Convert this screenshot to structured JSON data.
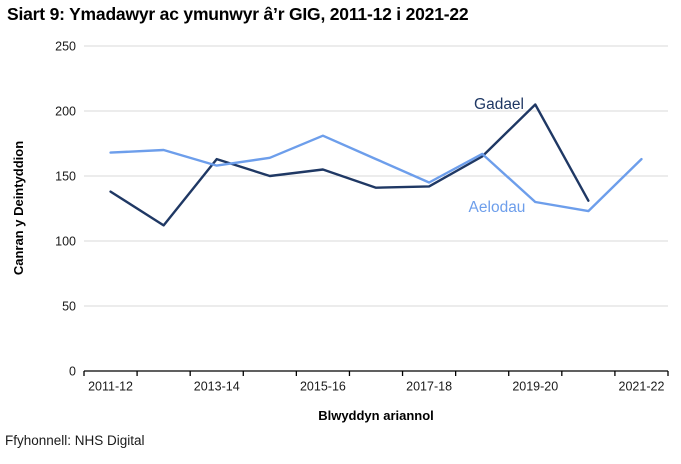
{
  "title": "Siart 9: Ymadawyr ac ymunwyr â’r GIG, 2011-12 i 2021-22",
  "source": "Ffyhonnell: NHS Digital",
  "chart_data": {
    "type": "line",
    "title": "Siart 9: Ymadawyr ac ymunwyr â’r GIG, 2011-12 i 2021-22",
    "xlabel": "Blwyddyn ariannol",
    "ylabel": "Canran y Deintyddion",
    "ylim": [
      0,
      250
    ],
    "yticks": [
      0,
      50,
      100,
      150,
      200,
      250
    ],
    "grid": true,
    "legend_position": "inline labels at series high points",
    "categories": [
      "2011-12",
      "2012-13",
      "2013-14",
      "2014-15",
      "2015-16",
      "2016-17",
      "2017-18",
      "2018-19",
      "2019-20",
      "2020-21",
      "2021-22"
    ],
    "xtick_labels": [
      "2011-12",
      "2013-14",
      "2015-16",
      "2017-18",
      "2019-20",
      "2021-22"
    ],
    "series": [
      {
        "name": "Gadael",
        "color": "#1F3864",
        "values": [
          138,
          112,
          163,
          150,
          155,
          141,
          142,
          165,
          205,
          131,
          null
        ]
      },
      {
        "name": "Aelodau",
        "color": "#6D9EEB",
        "values": [
          168,
          170,
          158,
          164,
          181,
          163,
          145,
          167,
          130,
          123,
          163
        ]
      }
    ],
    "colors": {
      "gridline": "#D9D9D9",
      "axis": "#000000",
      "tick_text": "#1a1a1a"
    }
  }
}
